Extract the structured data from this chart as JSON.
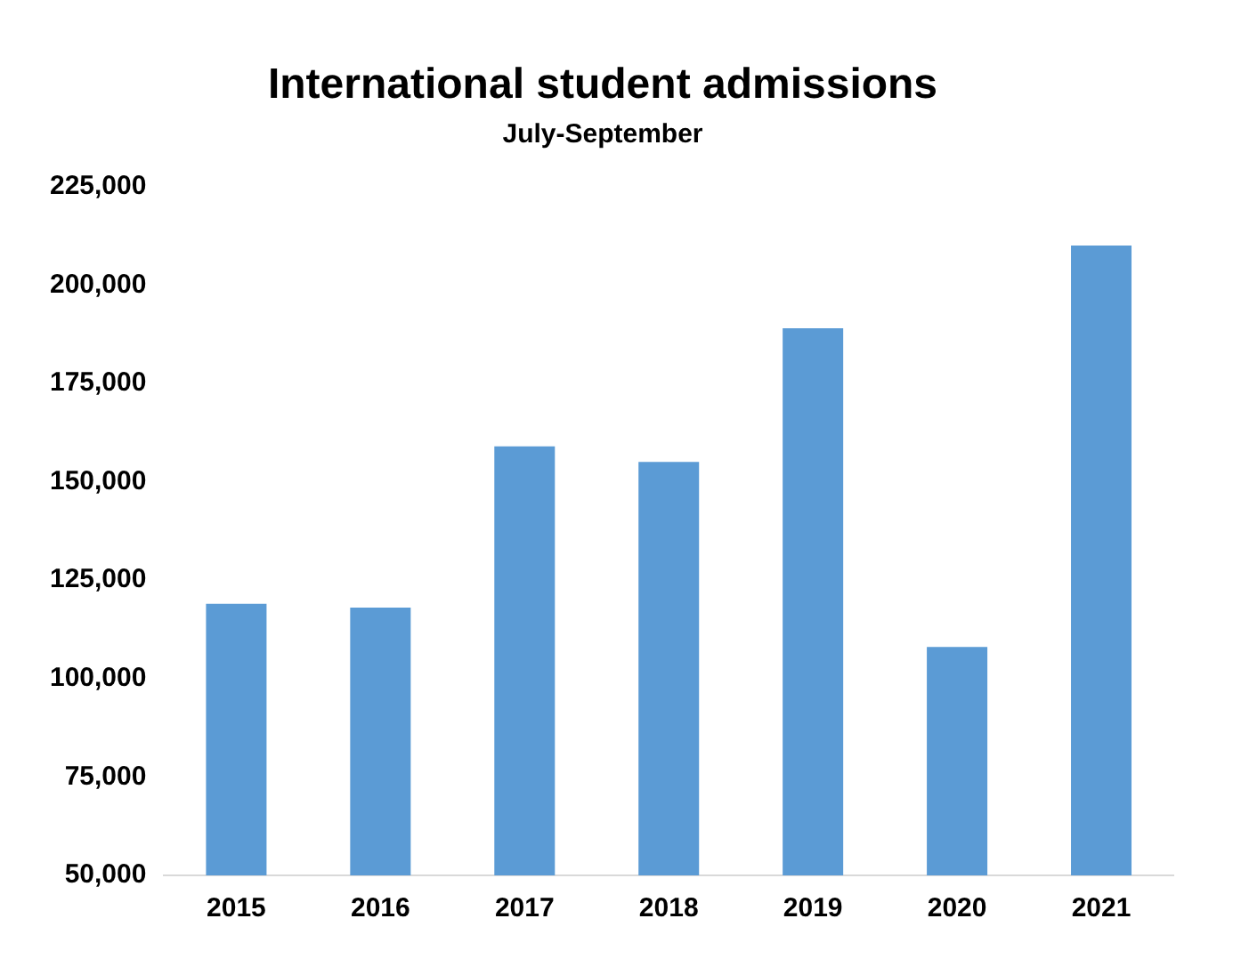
{
  "chart_data": {
    "type": "bar",
    "title": "International student admissions",
    "subtitle": "July-September",
    "categories": [
      "2015",
      "2016",
      "2017",
      "2018",
      "2019",
      "2020",
      "2021"
    ],
    "values": [
      119000,
      118000,
      159000,
      155000,
      189000,
      108000,
      210000
    ],
    "color": "#5b9bd5",
    "ylim": [
      50000,
      225000
    ],
    "yticks": [
      {
        "value": 50000,
        "label": "50,000"
      },
      {
        "value": 75000,
        "label": "75,000"
      },
      {
        "value": 100000,
        "label": "100,000"
      },
      {
        "value": 125000,
        "label": "125,000"
      },
      {
        "value": 150000,
        "label": "150,000"
      },
      {
        "value": 175000,
        "label": "175,000"
      },
      {
        "value": 200000,
        "label": "200,000"
      },
      {
        "value": 225000,
        "label": "225,000"
      }
    ],
    "grid": false,
    "legend": false
  }
}
